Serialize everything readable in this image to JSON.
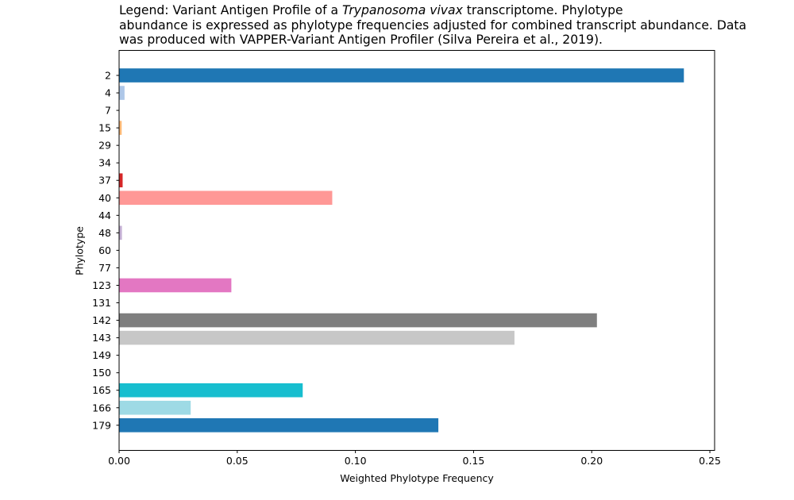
{
  "legend_text": {
    "prefix": "Legend: Variant Antigen Profile of a ",
    "species": "Trypanosoma vivax",
    "line1_suffix": " transcriptome. Phylotype",
    "line2": "abundance is expressed as phylotype frequencies adjusted for combined transcript abundance. Data",
    "line3": "was produced with VAPPER-Variant Antigen Profiler (Silva Pereira et al., 2019)."
  },
  "chart_data": {
    "type": "bar",
    "orientation": "horizontal",
    "title": "",
    "xlabel": "Weighted Phylotype Frequency",
    "ylabel": "Phylotype",
    "xlim": [
      0,
      0.252
    ],
    "xticks": [
      "0.00",
      "0.05",
      "0.10",
      "0.15",
      "0.20",
      "0.25"
    ],
    "xtick_values": [
      0,
      0.05,
      0.1,
      0.15,
      0.2,
      0.25
    ],
    "grid": false,
    "categories": [
      "2",
      "4",
      "7",
      "15",
      "29",
      "34",
      "37",
      "40",
      "44",
      "48",
      "60",
      "77",
      "123",
      "131",
      "142",
      "143",
      "149",
      "150",
      "165",
      "166",
      "179"
    ],
    "values": [
      0.239,
      0.0023,
      0,
      0.0011,
      0,
      0,
      0.0015,
      0.0902,
      0,
      0.0012,
      0,
      0,
      0.0475,
      0,
      0.2022,
      0.1673,
      0,
      0,
      0.0777,
      0.0303,
      0.1351
    ],
    "colors": [
      "#1f77b4",
      "#aec7e8",
      "#ff7f0e",
      "#ffbb78",
      "#2ca02c",
      "#98df8a",
      "#d62728",
      "#ff9896",
      "#9467bd",
      "#c5b0d5",
      "#8c564b",
      "#c49c94",
      "#e377c2",
      "#f7b6d2",
      "#7f7f7f",
      "#c7c7c7",
      "#bcbd22",
      "#dbdb8d",
      "#17becf",
      "#9edae5",
      "#1f77b4"
    ]
  }
}
